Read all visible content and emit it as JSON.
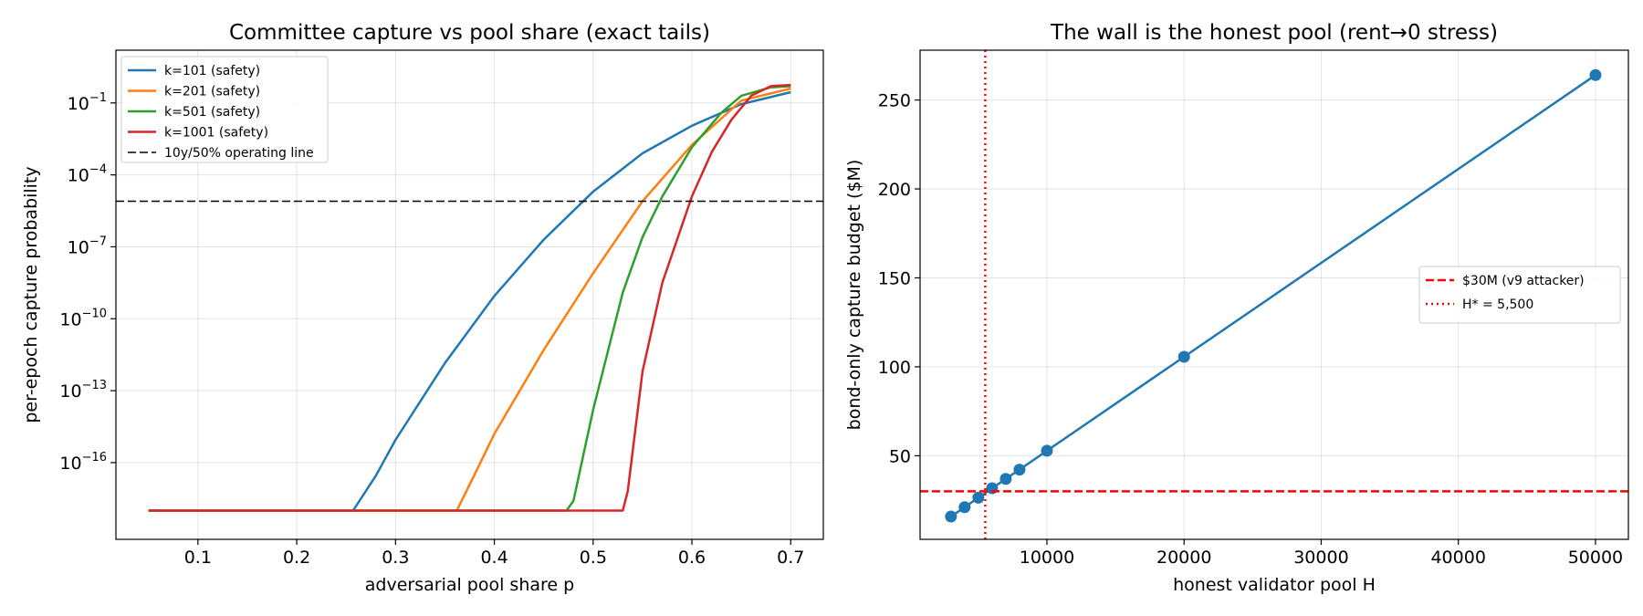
{
  "chart_data": [
    {
      "type": "line",
      "title": "Committee capture vs pool share (exact tails)",
      "xlabel": "adversarial pool share p",
      "ylabel": "per-epoch capture probability",
      "yscale": "log",
      "xlim": [
        0.017,
        0.733
      ],
      "ylim_log10": [
        -19.2,
        1.2
      ],
      "grid": true,
      "legend_position": "top-left",
      "xticks": [
        {
          "v": 0.1,
          "label": "0.1"
        },
        {
          "v": 0.2,
          "label": "0.2"
        },
        {
          "v": 0.3,
          "label": "0.3"
        },
        {
          "v": 0.4,
          "label": "0.4"
        },
        {
          "v": 0.5,
          "label": "0.5"
        },
        {
          "v": 0.6,
          "label": "0.6"
        },
        {
          "v": 0.7,
          "label": "0.7"
        }
      ],
      "yticks": [
        {
          "v": -1,
          "base": "10",
          "exp": "−1"
        },
        {
          "v": -4,
          "base": "10",
          "exp": "−4"
        },
        {
          "v": -7,
          "base": "10",
          "exp": "−7"
        },
        {
          "v": -10,
          "base": "10",
          "exp": "−10"
        },
        {
          "v": -13,
          "base": "10",
          "exp": "−13"
        },
        {
          "v": -16,
          "base": "10",
          "exp": "−16"
        }
      ],
      "series": [
        {
          "name": "k=101 (safety)",
          "color": "#1f77b4",
          "dash": "solid",
          "x": [
            0.05,
            0.257,
            0.28,
            0.3,
            0.35,
            0.4,
            0.45,
            0.5,
            0.55,
            0.6,
            0.65,
            0.7
          ],
          "y_log10": [
            -18.0,
            -18.0,
            -16.55,
            -15.05,
            -11.85,
            -9.05,
            -6.7,
            -4.7,
            -3.1,
            -1.95,
            -1.05,
            -0.55
          ]
        },
        {
          "name": "k=201 (safety)",
          "color": "#ff7f0e",
          "dash": "solid",
          "x": [
            0.05,
            0.362,
            0.38,
            0.4,
            0.45,
            0.5,
            0.55,
            0.6,
            0.65,
            0.7
          ],
          "y_log10": [
            -18.0,
            -18.0,
            -16.5,
            -14.8,
            -11.3,
            -8.1,
            -5.1,
            -2.75,
            -0.9,
            -0.4
          ]
        },
        {
          "name": "k=501 (safety)",
          "color": "#2ca02c",
          "dash": "solid",
          "x": [
            0.05,
            0.473,
            0.48,
            0.5,
            0.53,
            0.55,
            0.57,
            0.6,
            0.63,
            0.65,
            0.68,
            0.7
          ],
          "y_log10": [
            -18.0,
            -18.0,
            -17.6,
            -13.8,
            -8.9,
            -6.6,
            -4.9,
            -2.85,
            -1.4,
            -0.7,
            -0.35,
            -0.3
          ]
        },
        {
          "name": "k=1001 (safety)",
          "color": "#d62728",
          "dash": "solid",
          "x": [
            0.05,
            0.53,
            0.535,
            0.55,
            0.57,
            0.59,
            0.6,
            0.62,
            0.64,
            0.66,
            0.68,
            0.7
          ],
          "y_log10": [
            -18.0,
            -18.0,
            -17.2,
            -12.2,
            -8.5,
            -6.1,
            -4.9,
            -3.05,
            -1.7,
            -0.7,
            -0.3,
            -0.25
          ]
        },
        {
          "name": "10y/50% operating line",
          "color": "#000000",
          "dash": "dashed",
          "hline_log10": -5.1
        }
      ]
    },
    {
      "type": "line",
      "title": "The wall is the honest pool (rent→0 stress)",
      "xlabel": "honest validator pool H",
      "ylabel": "bond-only capture budget ($M)",
      "xlim": [
        750,
        52400
      ],
      "ylim": [
        3,
        278
      ],
      "grid": true,
      "legend_position": "right",
      "xticks": [
        {
          "v": 10000,
          "label": "10000"
        },
        {
          "v": 20000,
          "label": "20000"
        },
        {
          "v": 30000,
          "label": "30000"
        },
        {
          "v": 40000,
          "label": "40000"
        },
        {
          "v": 50000,
          "label": "50000"
        }
      ],
      "yticks": [
        {
          "v": 50,
          "label": "50"
        },
        {
          "v": 100,
          "label": "100"
        },
        {
          "v": 150,
          "label": "150"
        },
        {
          "v": 200,
          "label": "200"
        },
        {
          "v": 250,
          "label": "250"
        }
      ],
      "series": [
        {
          "name": "",
          "color": "#1f77b4",
          "marker": "circle",
          "x": [
            3000,
            4000,
            5000,
            6000,
            7000,
            8000,
            10000,
            20000,
            50000
          ],
          "y": [
            15.8,
            21.1,
            26.4,
            31.7,
            37.0,
            42.2,
            52.8,
            105.6,
            264.0
          ]
        },
        {
          "name": "$30M (v9 attacker)",
          "color": "#ff0000",
          "dash": "dashed",
          "hline": 30
        },
        {
          "name": "H* = 5,500",
          "color": "#ff0000",
          "dash": "dotted",
          "vline": 5500
        }
      ]
    }
  ]
}
